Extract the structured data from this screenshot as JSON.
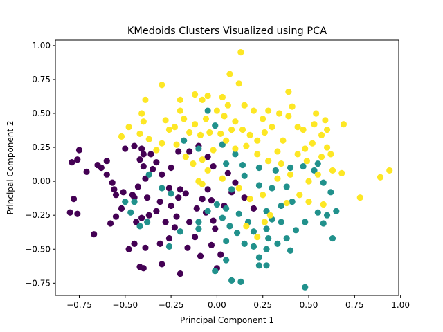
{
  "chart_data": {
    "type": "scatter",
    "title": "KMedoids Clusters Visualized using PCA",
    "xlabel": "Principal Component 1",
    "ylabel": "Principal Component 2",
    "xlim": [
      -0.88,
      0.99
    ],
    "ylim": [
      -0.84,
      1.04
    ],
    "xticks": [
      -0.75,
      -0.5,
      -0.25,
      0.0,
      0.25,
      0.5,
      0.75,
      1.0
    ],
    "xtick_labels": [
      "−0.75",
      "−0.50",
      "−0.25",
      "0.00",
      "0.25",
      "0.50",
      "0.75",
      "1.00"
    ],
    "yticks": [
      -0.75,
      -0.5,
      -0.25,
      0.0,
      0.25,
      0.5,
      0.75,
      1.0
    ],
    "ytick_labels": [
      "−0.75",
      "−0.50",
      "−0.25",
      "0.00",
      "0.25",
      "0.50",
      "0.75",
      "1.00"
    ],
    "grid": false,
    "legend": "none",
    "colors": {
      "cluster_0": "#440154",
      "cluster_1": "#21918c",
      "cluster_2": "#fde725"
    },
    "series": [
      {
        "color_key": "cluster_0",
        "points": [
          [
            -0.79,
            0.14
          ],
          [
            -0.75,
            0.23
          ],
          [
            -0.76,
            0.16
          ],
          [
            -0.78,
            -0.13
          ],
          [
            -0.8,
            -0.23
          ],
          [
            -0.76,
            -0.24
          ],
          [
            -0.71,
            0.07
          ],
          [
            -0.67,
            -0.39
          ],
          [
            -0.65,
            0.12
          ],
          [
            -0.63,
            0.1
          ],
          [
            -0.6,
            0.15
          ],
          [
            -0.6,
            0.05
          ],
          [
            -0.57,
            -0.01
          ],
          [
            -0.56,
            -0.06
          ],
          [
            -0.55,
            -0.1
          ],
          [
            -0.51,
            -0.08
          ],
          [
            -0.5,
            0.24
          ],
          [
            -0.45,
            0.26
          ],
          [
            -0.41,
            0.24
          ],
          [
            -0.4,
            0.2
          ],
          [
            -0.42,
            0.16
          ],
          [
            -0.4,
            0.11
          ],
          [
            -0.36,
            0.2
          ],
          [
            -0.33,
            0.14
          ],
          [
            -0.35,
            0.09
          ],
          [
            -0.3,
            0.05
          ],
          [
            -0.25,
            0.1
          ],
          [
            -0.21,
            0.22
          ],
          [
            -0.15,
            0.22
          ],
          [
            -0.1,
            0.26
          ],
          [
            -0.05,
            0.18
          ],
          [
            -0.02,
            0.11
          ],
          [
            0.06,
            0.06
          ],
          [
            0.1,
            -0.01
          ],
          [
            -0.39,
            0.02
          ],
          [
            -0.43,
            -0.04
          ],
          [
            -0.46,
            -0.1
          ],
          [
            -0.38,
            -0.12
          ],
          [
            -0.31,
            -0.15
          ],
          [
            -0.33,
            -0.22
          ],
          [
            -0.37,
            -0.25
          ],
          [
            -0.41,
            -0.27
          ],
          [
            -0.44,
            -0.3
          ],
          [
            -0.45,
            -0.12
          ],
          [
            -0.52,
            -0.2
          ],
          [
            -0.55,
            -0.26
          ],
          [
            -0.58,
            -0.31
          ],
          [
            -0.25,
            -0.18
          ],
          [
            -0.21,
            -0.12
          ],
          [
            -0.26,
            -0.05
          ],
          [
            -0.2,
            -0.06
          ],
          [
            -0.17,
            -0.09
          ],
          [
            -0.22,
            -0.26
          ],
          [
            -0.15,
            -0.3
          ],
          [
            -0.11,
            -0.2
          ],
          [
            -0.08,
            -0.13
          ],
          [
            -0.05,
            -0.06
          ],
          [
            -0.03,
            -0.14
          ],
          [
            -0.06,
            -0.23
          ],
          [
            -0.02,
            -0.29
          ],
          [
            -0.01,
            -0.35
          ],
          [
            0.04,
            -0.18
          ],
          [
            0.08,
            -0.08
          ],
          [
            -0.23,
            -0.34
          ],
          [
            -0.26,
            -0.42
          ],
          [
            -0.31,
            -0.46
          ],
          [
            -0.39,
            -0.49
          ],
          [
            -0.45,
            -0.46
          ],
          [
            -0.48,
            -0.5
          ],
          [
            -0.42,
            -0.63
          ],
          [
            -0.4,
            -0.64
          ],
          [
            -0.3,
            -0.61
          ],
          [
            -0.2,
            -0.68
          ],
          [
            -0.16,
            -0.49
          ],
          [
            -0.09,
            -0.55
          ],
          [
            -0.03,
            -0.47
          ],
          [
            0.02,
            -0.54
          ],
          [
            0.0,
            -0.64
          ],
          [
            0.15,
            -0.12
          ],
          [
            0.2,
            -0.2
          ],
          [
            -0.12,
            -0.41
          ],
          [
            -0.28,
            -0.3
          ]
        ]
      },
      {
        "color_key": "cluster_1",
        "points": [
          [
            -0.05,
            0.52
          ],
          [
            -0.01,
            0.41
          ],
          [
            -0.18,
            0.3
          ],
          [
            -0.1,
            0.24
          ],
          [
            0.03,
            0.27
          ],
          [
            0.1,
            0.2
          ],
          [
            0.05,
            0.13
          ],
          [
            0.14,
            0.12
          ],
          [
            0.23,
            0.1
          ],
          [
            0.32,
            0.08
          ],
          [
            0.4,
            0.1
          ],
          [
            0.47,
            0.11
          ],
          [
            0.53,
            0.08
          ],
          [
            0.58,
            -0.01
          ],
          [
            0.62,
            -0.08
          ],
          [
            0.55,
            0.13
          ],
          [
            0.65,
            -0.22
          ],
          [
            0.6,
            -0.25
          ],
          [
            0.55,
            -0.23
          ],
          [
            0.48,
            -0.3
          ],
          [
            0.43,
            -0.36
          ],
          [
            0.38,
            -0.42
          ],
          [
            0.4,
            -0.51
          ],
          [
            0.33,
            -0.46
          ],
          [
            0.28,
            -0.42
          ],
          [
            0.27,
            -0.5
          ],
          [
            0.23,
            -0.56
          ],
          [
            0.2,
            -0.48
          ],
          [
            0.15,
            -0.46
          ],
          [
            0.2,
            -0.37
          ],
          [
            0.17,
            -0.3
          ],
          [
            0.12,
            -0.24
          ],
          [
            0.05,
            -0.2
          ],
          [
            0.0,
            -0.17
          ],
          [
            0.03,
            -0.27
          ],
          [
            0.07,
            -0.33
          ],
          [
            0.11,
            -0.38
          ],
          [
            0.05,
            -0.44
          ],
          [
            0.05,
            -0.58
          ],
          [
            -0.01,
            -0.66
          ],
          [
            0.08,
            -0.73
          ],
          [
            0.13,
            -0.74
          ],
          [
            0.23,
            -0.62
          ],
          [
            0.27,
            -0.62
          ],
          [
            0.48,
            -0.78
          ],
          [
            0.63,
            -0.42
          ],
          [
            0.58,
            -0.31
          ],
          [
            0.3,
            -0.28
          ],
          [
            0.27,
            -0.22
          ],
          [
            0.35,
            -0.18
          ],
          [
            0.41,
            -0.15
          ],
          [
            0.38,
            -0.04
          ],
          [
            0.3,
            -0.05
          ],
          [
            0.23,
            -0.03
          ],
          [
            0.15,
            0.04
          ],
          [
            0.08,
            -0.06
          ],
          [
            -0.37,
            0.05
          ],
          [
            -0.45,
            -0.15
          ],
          [
            -0.5,
            -0.15
          ],
          [
            -0.47,
            -0.23
          ],
          [
            -0.38,
            -0.3
          ],
          [
            -0.42,
            -0.33
          ],
          [
            -0.26,
            -0.48
          ],
          [
            -0.2,
            -0.37
          ],
          [
            -0.1,
            -0.35
          ],
          [
            -0.05,
            -0.22
          ],
          [
            -0.25,
            -0.09
          ],
          [
            -0.3,
            -0.05
          ],
          [
            -0.1,
            -0.3
          ],
          [
            0.27,
            -0.35
          ],
          [
            0.35,
            -0.3
          ]
        ]
      },
      {
        "color_key": "cluster_2",
        "points": [
          [
            0.13,
            0.95
          ],
          [
            0.07,
            0.79
          ],
          [
            0.12,
            0.72
          ],
          [
            0.03,
            0.62
          ],
          [
            -0.3,
            0.71
          ],
          [
            -0.2,
            0.6
          ],
          [
            -0.12,
            0.64
          ],
          [
            -0.08,
            0.6
          ],
          [
            -0.05,
            0.63
          ],
          [
            -0.39,
            0.6
          ],
          [
            -0.41,
            0.5
          ],
          [
            -0.4,
            0.44
          ],
          [
            -0.42,
            0.35
          ],
          [
            -0.52,
            0.33
          ],
          [
            -0.48,
            0.4
          ],
          [
            -0.28,
            0.45
          ],
          [
            -0.2,
            0.52
          ],
          [
            -0.26,
            0.38
          ],
          [
            -0.18,
            0.46
          ],
          [
            -0.12,
            0.42
          ],
          [
            -0.06,
            0.46
          ],
          [
            0.0,
            0.52
          ],
          [
            0.04,
            0.48
          ],
          [
            0.1,
            0.44
          ],
          [
            0.08,
            0.38
          ],
          [
            0.02,
            0.35
          ],
          [
            -0.04,
            0.36
          ],
          [
            -0.09,
            0.34
          ],
          [
            -0.15,
            0.36
          ],
          [
            -0.23,
            0.4
          ],
          [
            0.14,
            0.38
          ],
          [
            0.18,
            0.34
          ],
          [
            0.22,
            0.3
          ],
          [
            0.26,
            0.36
          ],
          [
            0.3,
            0.4
          ],
          [
            0.25,
            0.46
          ],
          [
            0.2,
            0.52
          ],
          [
            0.28,
            0.52
          ],
          [
            0.34,
            0.5
          ],
          [
            0.39,
            0.48
          ],
          [
            0.44,
            0.4
          ],
          [
            0.47,
            0.38
          ],
          [
            0.53,
            0.42
          ],
          [
            0.54,
            0.5
          ],
          [
            0.59,
            0.45
          ],
          [
            0.6,
            0.38
          ],
          [
            0.57,
            0.34
          ],
          [
            0.52,
            0.28
          ],
          [
            0.48,
            0.24
          ],
          [
            0.44,
            0.2
          ],
          [
            0.49,
            0.15
          ],
          [
            0.57,
            0.18
          ],
          [
            0.62,
            0.2
          ],
          [
            0.6,
            0.25
          ],
          [
            0.69,
            0.42
          ],
          [
            0.39,
            0.66
          ],
          [
            0.41,
            0.55
          ],
          [
            0.36,
            0.3
          ],
          [
            0.33,
            0.22
          ],
          [
            0.35,
            0.13
          ],
          [
            0.28,
            0.15
          ],
          [
            0.22,
            0.2
          ],
          [
            0.16,
            0.26
          ],
          [
            0.1,
            0.24
          ],
          [
            0.05,
            0.3
          ],
          [
            -0.02,
            0.23
          ],
          [
            -0.08,
            0.16
          ],
          [
            -0.13,
            0.13
          ],
          [
            -0.05,
            0.08
          ],
          [
            0.03,
            0.02
          ],
          [
            0.12,
            -0.05
          ],
          [
            0.18,
            -0.13
          ],
          [
            0.25,
            -0.1
          ],
          [
            0.33,
            0.02
          ],
          [
            0.4,
            0.05
          ],
          [
            0.5,
            0.0
          ],
          [
            0.55,
            0.05
          ],
          [
            0.63,
            0.08
          ],
          [
            0.68,
            0.06
          ],
          [
            0.5,
            -0.15
          ],
          [
            0.58,
            -0.17
          ],
          [
            0.45,
            -0.1
          ],
          [
            0.38,
            -0.16
          ],
          [
            0.29,
            -0.25
          ],
          [
            -0.17,
            0.18
          ],
          [
            -0.22,
            0.27
          ],
          [
            -0.3,
            0.28
          ],
          [
            -0.37,
            0.31
          ],
          [
            -0.33,
            0.23
          ],
          [
            -0.08,
            -0.02
          ],
          [
            0.78,
            -0.12
          ],
          [
            0.89,
            0.03
          ],
          [
            0.94,
            0.08
          ],
          [
            -0.1,
            0.0
          ],
          [
            0.16,
            -0.33
          ],
          [
            0.22,
            -0.41
          ],
          [
            0.26,
            -0.3
          ],
          [
            0.06,
            0.56
          ],
          [
            0.15,
            0.56
          ]
        ]
      }
    ]
  }
}
